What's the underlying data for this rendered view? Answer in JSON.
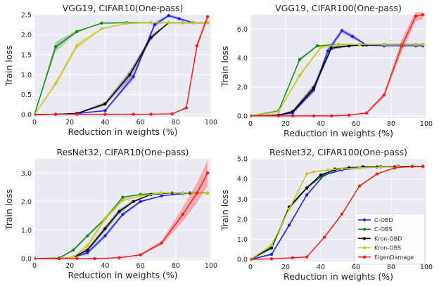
{
  "colors": {
    "background": "#eaeaf2",
    "grid": "#ffffff",
    "C-OBD": "#1f1fff",
    "C-OBS": "#138a13",
    "Kron-OBD": "#000000",
    "Kron-OBS": "#c8c81e",
    "EigenDamage": "#ff1a1a"
  },
  "chart_data": [
    {
      "type": "line",
      "title": "VGG19, CIFAR10(One-pass)",
      "xlabel": "Reduction in weights (%)",
      "ylabel": "Train loss",
      "xlim": [
        0,
        100
      ],
      "ylim": [
        -0.05,
        2.5
      ],
      "xticks": [
        0,
        20,
        40,
        60,
        80,
        100
      ],
      "yticks": [
        0.0,
        0.5,
        1.0,
        1.5,
        2.0,
        2.5
      ],
      "ytick_labels": [
        "0.0",
        "0.5",
        "1.0",
        "1.5",
        "2.0",
        "2.5"
      ],
      "grid": true,
      "series": [
        {
          "name": "C-OBD",
          "x": [
            0,
            12,
            24,
            40,
            56,
            68,
            76,
            82,
            90,
            98
          ],
          "y": [
            0.0,
            0.01,
            0.03,
            0.1,
            0.95,
            2.25,
            2.48,
            2.4,
            2.3,
            2.3
          ],
          "band": [
            0,
            0,
            0,
            0.02,
            0.08,
            0.06,
            0.04,
            0.04,
            0,
            0
          ]
        },
        {
          "name": "C-OBS",
          "x": [
            0,
            12,
            24,
            38,
            52,
            66,
            76,
            84,
            90,
            98
          ],
          "y": [
            0.0,
            1.7,
            2.08,
            2.29,
            2.3,
            2.3,
            2.3,
            2.3,
            2.3,
            2.3
          ],
          "band": [
            0,
            0.12,
            0.03,
            0,
            0,
            0,
            0,
            0,
            0,
            0
          ]
        },
        {
          "name": "Kron-OBD",
          "x": [
            0,
            12,
            24,
            40,
            54,
            66,
            76,
            84,
            90,
            98
          ],
          "y": [
            0.0,
            0.01,
            0.03,
            0.27,
            1.0,
            1.93,
            2.3,
            2.3,
            2.3,
            2.3
          ],
          "band": [
            0,
            0,
            0.01,
            0.05,
            0.1,
            0.06,
            0,
            0,
            0,
            0
          ]
        },
        {
          "name": "Kron-OBS",
          "x": [
            0,
            12,
            24,
            38,
            52,
            66,
            76,
            84,
            90,
            98
          ],
          "y": [
            0.0,
            0.78,
            1.72,
            2.15,
            2.28,
            2.3,
            2.3,
            2.3,
            2.3,
            2.3
          ],
          "band": [
            0,
            0.06,
            0.08,
            0.02,
            0,
            0,
            0,
            0,
            0,
            0
          ]
        },
        {
          "name": "EigenDamage",
          "x": [
            0,
            12,
            24,
            40,
            56,
            66,
            78,
            86,
            92,
            98
          ],
          "y": [
            0.0,
            0.01,
            0.01,
            0.01,
            0.01,
            0.01,
            0.02,
            0.17,
            1.72,
            2.45
          ],
          "band": [
            0,
            0,
            0,
            0,
            0,
            0,
            0,
            0.03,
            0.08,
            0.06
          ]
        }
      ]
    },
    {
      "type": "line",
      "title": "VGG19, CIFAR100(One-pass)",
      "xlabel": "Reduction in weights (%)",
      "ylabel": "Train loss",
      "xlim": [
        0,
        100
      ],
      "ylim": [
        -0.15,
        7.0
      ],
      "xticks": [
        0,
        20,
        40,
        60,
        80,
        100
      ],
      "yticks": [
        0,
        2,
        4,
        6
      ],
      "ytick_labels": [
        "0.0",
        "2.0",
        "4.0",
        "6.0"
      ],
      "grid": true,
      "series": [
        {
          "name": "C-OBD",
          "x": [
            0,
            16,
            24,
            36,
            44,
            52,
            58,
            66,
            76,
            86,
            94,
            98
          ],
          "y": [
            0.0,
            0.05,
            0.2,
            1.8,
            4.5,
            5.9,
            5.5,
            4.9,
            4.85,
            4.85,
            4.85,
            4.85
          ],
          "band": [
            0,
            0,
            0.05,
            0.2,
            0.2,
            0.15,
            0.15,
            0.05,
            0,
            0,
            0,
            0
          ]
        },
        {
          "name": "C-OBS",
          "x": [
            0,
            16,
            28,
            38,
            50,
            62,
            76,
            86,
            94,
            98
          ],
          "y": [
            0.0,
            0.35,
            3.9,
            4.85,
            4.95,
            4.95,
            4.95,
            4.95,
            4.95,
            4.95
          ],
          "band": [
            0,
            0,
            0.1,
            0.05,
            0,
            0,
            0,
            0,
            0,
            0
          ]
        },
        {
          "name": "Kron-OBD",
          "x": [
            0,
            16,
            24,
            36,
            46,
            56,
            64,
            76,
            86,
            94,
            98
          ],
          "y": [
            0.0,
            0.05,
            0.3,
            1.95,
            4.7,
            4.85,
            4.9,
            4.95,
            4.95,
            4.95,
            4.95
          ],
          "band": [
            0,
            0,
            0.1,
            0.25,
            0.15,
            0.05,
            0,
            0,
            0,
            0,
            0
          ]
        },
        {
          "name": "Kron-OBS",
          "x": [
            0,
            16,
            28,
            40,
            50,
            62,
            76,
            86,
            94,
            98
          ],
          "y": [
            0.0,
            0.3,
            2.8,
            4.75,
            4.95,
            4.95,
            4.95,
            4.95,
            4.95,
            4.95
          ],
          "band": [
            0,
            0.05,
            0.15,
            0.1,
            0,
            0,
            0,
            0,
            0,
            0
          ]
        },
        {
          "name": "EigenDamage",
          "x": [
            0,
            16,
            24,
            36,
            46,
            56,
            66,
            76,
            86,
            94,
            98
          ],
          "y": [
            0.0,
            0.0,
            0.0,
            0.0,
            0.0,
            0.05,
            0.2,
            1.45,
            4.85,
            6.9,
            7.0
          ],
          "band": [
            0,
            0,
            0,
            0,
            0,
            0,
            0.05,
            0.15,
            0.45,
            0.35,
            0.3
          ]
        }
      ]
    },
    {
      "type": "line",
      "title": "ResNet32, CIFAR10(One-pass)",
      "xlabel": "Reduction in weights (%)",
      "ylabel": "Train loss",
      "xlim": [
        0,
        100
      ],
      "ylim": [
        -0.05,
        3.5
      ],
      "xticks": [
        0,
        20,
        40,
        60,
        80,
        100
      ],
      "yticks": [
        0.0,
        1.0,
        2.0,
        3.0
      ],
      "ytick_labels": [
        "0.0",
        "1.0",
        "2.0",
        "3.0"
      ],
      "grid": true,
      "series": [
        {
          "name": "C-OBD",
          "x": [
            0,
            14,
            22,
            30,
            40,
            50,
            60,
            72,
            84,
            92,
            98
          ],
          "y": [
            0.0,
            0.0,
            0.05,
            0.2,
            0.8,
            1.55,
            2.0,
            2.2,
            2.28,
            2.3,
            2.3
          ],
          "band": [
            0,
            0,
            0.02,
            0.05,
            0.08,
            0.06,
            0.04,
            0,
            0,
            0,
            0
          ]
        },
        {
          "name": "C-OBS",
          "x": [
            0,
            14,
            22,
            30,
            40,
            50,
            60,
            72,
            84,
            92,
            98
          ],
          "y": [
            0.0,
            0.02,
            0.3,
            0.8,
            1.4,
            2.15,
            2.25,
            2.3,
            2.3,
            2.3,
            2.3
          ],
          "band": [
            0,
            0,
            0.05,
            0.05,
            0.05,
            0.04,
            0,
            0,
            0,
            0,
            0
          ]
        },
        {
          "name": "Kron-OBD",
          "x": [
            0,
            14,
            22,
            30,
            40,
            48,
            56,
            66,
            78,
            88,
            98
          ],
          "y": [
            0.0,
            0.0,
            0.05,
            0.3,
            1.05,
            1.65,
            2.0,
            2.25,
            2.3,
            2.3,
            2.3
          ],
          "band": [
            0,
            0,
            0.02,
            0.06,
            0.1,
            0.08,
            0.04,
            0,
            0,
            0,
            0
          ]
        },
        {
          "name": "Kron-OBS",
          "x": [
            0,
            14,
            22,
            30,
            40,
            50,
            60,
            72,
            84,
            92,
            98
          ],
          "y": [
            0.0,
            0.0,
            0.05,
            0.45,
            1.4,
            2.05,
            2.2,
            2.3,
            2.3,
            2.3,
            2.3
          ],
          "band": [
            0,
            0,
            0.02,
            0.08,
            0.1,
            0.05,
            0,
            0,
            0,
            0,
            0
          ]
        },
        {
          "name": "EigenDamage",
          "x": [
            0,
            14,
            24,
            34,
            48,
            60,
            72,
            84,
            92,
            98
          ],
          "y": [
            0.0,
            0.0,
            0.0,
            0.0,
            0.03,
            0.13,
            0.55,
            1.55,
            2.3,
            3.0
          ],
          "band": [
            0,
            0,
            0,
            0,
            0,
            0.03,
            0.08,
            0.25,
            0.35,
            0.45
          ]
        }
      ]
    },
    {
      "type": "line",
      "title": "ResNet32, CIFAR100(One-pass)",
      "xlabel": "Reduction in weights (%)",
      "ylabel": "Train loss",
      "xlim": [
        0,
        100
      ],
      "ylim": [
        -0.1,
        5.0
      ],
      "xticks": [
        0,
        20,
        40,
        60,
        80,
        100
      ],
      "yticks": [
        0.0,
        1.0,
        2.0,
        3.0,
        4.0,
        5.0
      ],
      "ytick_labels": [
        "0.0",
        "1.0",
        "2.0",
        "3.0",
        "4.0",
        "5.0"
      ],
      "grid": true,
      "legend": "bottom-right",
      "series": [
        {
          "name": "C-OBD",
          "x": [
            0,
            12,
            22,
            32,
            42,
            52,
            62,
            72,
            82,
            92,
            98
          ],
          "y": [
            0.0,
            0.25,
            1.7,
            3.2,
            4.2,
            4.45,
            4.55,
            4.6,
            4.6,
            4.62,
            4.62
          ],
          "band": [
            0,
            0.05,
            0.08,
            0.06,
            0.04,
            0.02,
            0,
            0,
            0,
            0,
            0
          ]
        },
        {
          "name": "C-OBS",
          "x": [
            0,
            12,
            22,
            32,
            40,
            48,
            56,
            64,
            74,
            84,
            92,
            98
          ],
          "y": [
            0.0,
            0.55,
            2.55,
            3.55,
            4.1,
            4.5,
            4.55,
            4.6,
            4.6,
            4.62,
            4.62,
            4.62
          ],
          "band": [
            0,
            0.05,
            0.06,
            0.05,
            0.03,
            0,
            0,
            0,
            0,
            0,
            0,
            0
          ]
        },
        {
          "name": "Kron-OBD",
          "x": [
            0,
            12,
            22,
            32,
            40,
            48,
            56,
            64,
            74,
            84,
            92,
            98
          ],
          "y": [
            0.0,
            0.6,
            2.6,
            3.55,
            4.2,
            4.45,
            4.55,
            4.6,
            4.6,
            4.62,
            4.62,
            4.62
          ],
          "band": [
            0,
            0.05,
            0.06,
            0.05,
            0.03,
            0,
            0,
            0,
            0,
            0,
            0,
            0
          ]
        },
        {
          "name": "Kron-OBS",
          "x": [
            0,
            12,
            22,
            32,
            36,
            44,
            52,
            62,
            74,
            84,
            92,
            98
          ],
          "y": [
            0.0,
            0.7,
            2.5,
            4.25,
            4.35,
            4.45,
            4.5,
            4.55,
            4.58,
            4.6,
            4.6,
            4.6
          ],
          "band": [
            0,
            0.08,
            0.08,
            0.05,
            0.03,
            0,
            0,
            0,
            0,
            0,
            0,
            0
          ]
        },
        {
          "name": "EigenDamage",
          "x": [
            0,
            12,
            24,
            32,
            42,
            52,
            62,
            72,
            82,
            92,
            98
          ],
          "y": [
            0.0,
            0.03,
            0.08,
            0.12,
            1.1,
            2.25,
            3.65,
            4.25,
            4.55,
            4.62,
            4.62
          ],
          "band": [
            0,
            0,
            0,
            0.02,
            0.04,
            0.05,
            0.05,
            0.03,
            0.02,
            0,
            0
          ]
        }
      ]
    }
  ]
}
